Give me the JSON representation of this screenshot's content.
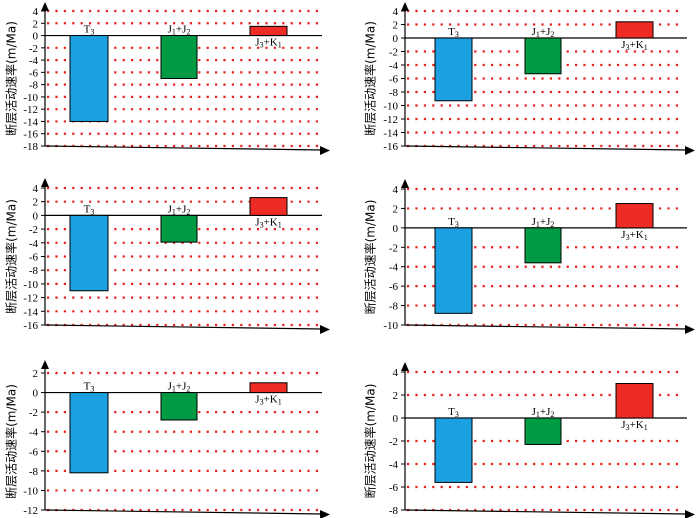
{
  "chart_data": [
    {
      "type": "bar",
      "panel": "top-left",
      "ylabel": "断层活动速率(m/Ma)",
      "ylim": [
        -18,
        4
      ],
      "yticks": [
        4,
        2,
        0,
        -2,
        -4,
        -6,
        -8,
        -10,
        -12,
        -14,
        -16,
        -18
      ],
      "categories": [
        "T3",
        "J1+J2",
        "J3+K1"
      ],
      "category_labels": [
        {
          "base": "T",
          "sub": "3"
        },
        {
          "base": "J",
          "sub": "1",
          "mid": "+J",
          "sub2": "2"
        },
        {
          "base": "J",
          "sub": "3",
          "mid": "+K",
          "sub2": "1"
        }
      ],
      "values": [
        -14,
        -7,
        1.5
      ],
      "colors": [
        "#1ba1e2",
        "#009a44",
        "#ee2b24"
      ]
    },
    {
      "type": "bar",
      "panel": "top-right",
      "ylabel": "断层活动速率(m/Ma)",
      "ylim": [
        -16,
        4
      ],
      "yticks": [
        4,
        2,
        0,
        -2,
        -4,
        -6,
        -8,
        -10,
        -12,
        -14,
        -16
      ],
      "categories": [
        "T3",
        "J1+J2",
        "J3+K1"
      ],
      "category_labels": [
        {
          "base": "T",
          "sub": "3"
        },
        {
          "base": "J",
          "sub": "1",
          "mid": "+J",
          "sub2": "2"
        },
        {
          "base": "J",
          "sub": "3",
          "mid": "+K",
          "sub2": "1"
        }
      ],
      "values": [
        -9.3,
        -5.3,
        2.4
      ],
      "colors": [
        "#1ba1e2",
        "#009a44",
        "#ee2b24"
      ]
    },
    {
      "type": "bar",
      "panel": "middle-left",
      "ylabel": "断层活动速率(m/Ma)",
      "ylim": [
        -16,
        4
      ],
      "yticks": [
        4,
        2,
        0,
        -2,
        -4,
        -6,
        -8,
        -10,
        -12,
        -14,
        -16
      ],
      "categories": [
        "T3",
        "J1+J2",
        "J3+K1"
      ],
      "category_labels": [
        {
          "base": "T",
          "sub": "3"
        },
        {
          "base": "J",
          "sub": "1",
          "mid": "+J",
          "sub2": "2"
        },
        {
          "base": "J",
          "sub": "3",
          "mid": "+K",
          "sub2": "1"
        }
      ],
      "values": [
        -11,
        -3.9,
        2.6
      ],
      "colors": [
        "#1ba1e2",
        "#009a44",
        "#ee2b24"
      ]
    },
    {
      "type": "bar",
      "panel": "middle-right",
      "ylabel": "断层活动速率(m/Ma)",
      "ylim": [
        -10,
        4
      ],
      "yticks": [
        4,
        2,
        0,
        -2,
        -4,
        -6,
        -8,
        -10
      ],
      "categories": [
        "T3",
        "J1+J2",
        "J3+K1"
      ],
      "category_labels": [
        {
          "base": "T",
          "sub": "3"
        },
        {
          "base": "J",
          "sub": "1",
          "mid": "+J",
          "sub2": "2"
        },
        {
          "base": "J",
          "sub": "3",
          "mid": "+K",
          "sub2": "1"
        }
      ],
      "values": [
        -8.8,
        -3.6,
        2.5
      ],
      "colors": [
        "#1ba1e2",
        "#009a44",
        "#ee2b24"
      ]
    },
    {
      "type": "bar",
      "panel": "bottom-left",
      "ylabel": "断层活动速率(m/Ma)",
      "ylim": [
        -12,
        2
      ],
      "yticks": [
        2,
        0,
        -2,
        -4,
        -6,
        -8,
        -10,
        -12
      ],
      "categories": [
        "T3",
        "J1+J2",
        "J3+K1"
      ],
      "category_labels": [
        {
          "base": "T",
          "sub": "3"
        },
        {
          "base": "J",
          "sub": "1",
          "mid": "+J",
          "sub2": "2"
        },
        {
          "base": "J",
          "sub": "3",
          "mid": "+K",
          "sub2": "1"
        }
      ],
      "values": [
        -8.2,
        -2.8,
        1
      ],
      "colors": [
        "#1ba1e2",
        "#009a44",
        "#ee2b24"
      ]
    },
    {
      "type": "bar",
      "panel": "bottom-right",
      "ylabel": "断层活动速率(m/Ma)",
      "ylim": [
        -8,
        4
      ],
      "yticks": [
        4,
        2,
        0,
        -2,
        -4,
        -6,
        -8
      ],
      "categories": [
        "T3",
        "J1+J2",
        "J3+K1"
      ],
      "category_labels": [
        {
          "base": "T",
          "sub": "3"
        },
        {
          "base": "J",
          "sub": "1",
          "mid": "+J",
          "sub2": "2"
        },
        {
          "base": "J",
          "sub": "3",
          "mid": "+K",
          "sub2": "1"
        }
      ],
      "values": [
        -5.6,
        -2.3,
        3
      ],
      "colors": [
        "#1ba1e2",
        "#009a44",
        "#ee2b24"
      ]
    }
  ],
  "style": {
    "grid_color": "#e8221b",
    "axis_color": "#000000",
    "bar_edge": "#000000"
  }
}
